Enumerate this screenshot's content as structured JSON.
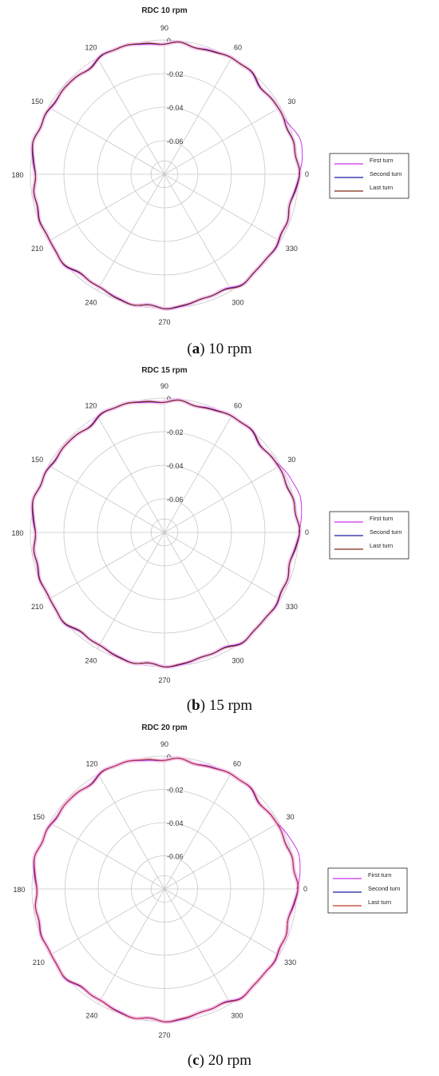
{
  "figure": {
    "colors": {
      "first_turn": "#cc33ee",
      "second_turn": "#1a1aa0",
      "last_turn": "#7a2a14",
      "grid": "#c8c8c8",
      "halo": "#f4c6f4"
    }
  },
  "chart_data": [
    {
      "type": "polar-line",
      "title": "RDC 10 rpm",
      "angular_ticks": [
        "0",
        "30",
        "60",
        "90",
        "120",
        "150",
        "180",
        "210",
        "240",
        "270",
        "300",
        "330"
      ],
      "radial_ticks": [
        "0",
        "-0.02",
        "-0.04",
        "-0.06"
      ],
      "rlim": [
        -0.08,
        0.0
      ],
      "legend": {
        "placement": "right",
        "entries": [
          "First turn",
          "Second turn",
          "Last turn"
        ]
      },
      "series": [
        {
          "name": "First turn",
          "color": "#cc33ee",
          "base_r": -0.0012,
          "run_in_start_r": 0.0,
          "run_in_end_angle": 25
        },
        {
          "name": "Second turn",
          "color": "#1a1aa0",
          "base_r": -0.0012
        },
        {
          "name": "Last turn",
          "color": "#7a2a14",
          "base_r": -0.0012
        }
      ],
      "caption": {
        "letter": "a",
        "text": " 10 rpm"
      }
    },
    {
      "type": "polar-line",
      "title": "RDC 15 rpm",
      "angular_ticks": [
        "0",
        "30",
        "60",
        "90",
        "120",
        "150",
        "180",
        "210",
        "240",
        "270",
        "300",
        "330"
      ],
      "radial_ticks": [
        "0",
        "-0.02",
        "-0.04",
        "-0.06"
      ],
      "rlim": [
        -0.08,
        0.0
      ],
      "legend": {
        "placement": "right",
        "entries": [
          "First turn",
          "Second turn",
          "Last turn"
        ]
      },
      "series": [
        {
          "name": "First turn",
          "color": "#cc33ee",
          "base_r": -0.0012,
          "run_in_start_r": 0.0,
          "run_in_end_angle": 32
        },
        {
          "name": "Second turn",
          "color": "#1a1aa0",
          "base_r": -0.0012
        },
        {
          "name": "Last turn",
          "color": "#7a2a14",
          "base_r": -0.0012
        }
      ],
      "caption": {
        "letter": "b",
        "text": " 15 rpm"
      }
    },
    {
      "type": "polar-line",
      "title": "RDC 20 rpm",
      "angular_ticks": [
        "0",
        "30",
        "60",
        "90",
        "120",
        "150",
        "180",
        "210",
        "240",
        "270",
        "300",
        "330"
      ],
      "radial_ticks": [
        "0",
        "-0.02",
        "-0.04",
        "-0.06"
      ],
      "rlim": [
        -0.08,
        0.0
      ],
      "legend": {
        "placement": "right",
        "entries": [
          "First turn",
          "Second turn",
          "Last turn"
        ]
      },
      "series": [
        {
          "name": "First turn",
          "color": "#cc33ee",
          "base_r": -0.0012,
          "run_in_start_r": 0.0,
          "run_in_end_angle": 30
        },
        {
          "name": "Second turn",
          "color": "#1a1aa0",
          "base_r": -0.0012
        },
        {
          "name": "Last turn",
          "color": "#c0392b",
          "base_r": -0.0012
        }
      ],
      "caption": {
        "letter": "c",
        "text": " 20 rpm"
      }
    }
  ]
}
